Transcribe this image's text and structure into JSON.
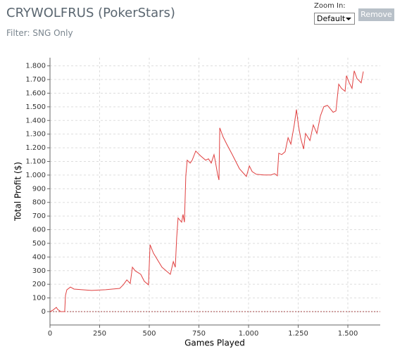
{
  "header": {
    "title": "CRYWOLFRUS (PokerStars)",
    "filter": "Filter: SNG Only",
    "zoom_label": "Zoom In:",
    "zoom_option": "Default",
    "remove_button": "Remove"
  },
  "chart_data": {
    "type": "line",
    "x_label": "Games Played",
    "y_label": "Total Profit ($)",
    "xlim": [
      0,
      1663
    ],
    "ylim": [
      -98,
      1860
    ],
    "xticks": [
      0,
      250,
      500,
      750,
      {
        "value": 1000,
        "label": "1.000"
      },
      {
        "value": 1250,
        "label": "1.250"
      },
      {
        "value": 1500,
        "label": "1.500"
      }
    ],
    "yticks": [
      0,
      100,
      200,
      300,
      400,
      500,
      600,
      700,
      800,
      900,
      {
        "value": 1000,
        "label": "1.000"
      },
      {
        "value": 1100,
        "label": "1.100"
      },
      {
        "value": 1200,
        "label": "1.200"
      },
      {
        "value": 1300,
        "label": "1.300"
      },
      {
        "value": 1400,
        "label": "1.400"
      },
      {
        "value": 1500,
        "label": "1.500"
      },
      {
        "value": 1600,
        "label": "1.600"
      },
      {
        "value": 1700,
        "label": "1.700"
      },
      {
        "value": 1800,
        "label": "1.800"
      }
    ],
    "grid": true,
    "series": [
      {
        "name": "Total Profit",
        "color": "#e04040",
        "x": [
          0,
          14,
          32,
          39,
          50,
          53,
          74,
          78,
          85,
          103,
          121,
          209,
          280,
          351,
          369,
          387,
          404,
          415,
          429,
          457,
          475,
          496,
          504,
          521,
          564,
          606,
          621,
          631,
          638,
          645,
          663,
          670,
          677,
          684,
          691,
          706,
          716,
          734,
          759,
          784,
          798,
          812,
          826,
          833,
          844,
          851,
          855,
          872,
          890,
          918,
          954,
          979,
          989,
          1004,
          1018,
          1039,
          1078,
          1113,
          1131,
          1145,
          1152,
          1167,
          1184,
          1199,
          1213,
          1230,
          1241,
          1252,
          1262,
          1277,
          1287,
          1309,
          1326,
          1344,
          1362,
          1379,
          1397,
          1426,
          1440,
          1454,
          1468,
          1486,
          1493,
          1507,
          1521,
          1532,
          1546,
          1567,
          1578
        ],
        "values": [
          0,
          10,
          31,
          15,
          5,
          0,
          0,
          119,
          160,
          180,
          165,
          155,
          160,
          170,
          196,
          232,
          206,
          325,
          299,
          273,
          222,
          196,
          490,
          428,
          325,
          273,
          366,
          325,
          541,
          686,
          655,
          712,
          655,
          995,
          1109,
          1088,
          1109,
          1176,
          1140,
          1109,
          1119,
          1088,
          1150,
          1098,
          1006,
          964,
          1346,
          1279,
          1227,
          1150,
          1047,
          1006,
          990,
          1067,
          1026,
          1006,
          1001,
          1001,
          1011,
          995,
          1160,
          1150,
          1171,
          1274,
          1227,
          1367,
          1480,
          1356,
          1274,
          1191,
          1305,
          1253,
          1367,
          1305,
          1434,
          1501,
          1511,
          1460,
          1470,
          1666,
          1635,
          1614,
          1728,
          1676,
          1635,
          1764,
          1707,
          1676,
          1759
        ]
      }
    ]
  }
}
